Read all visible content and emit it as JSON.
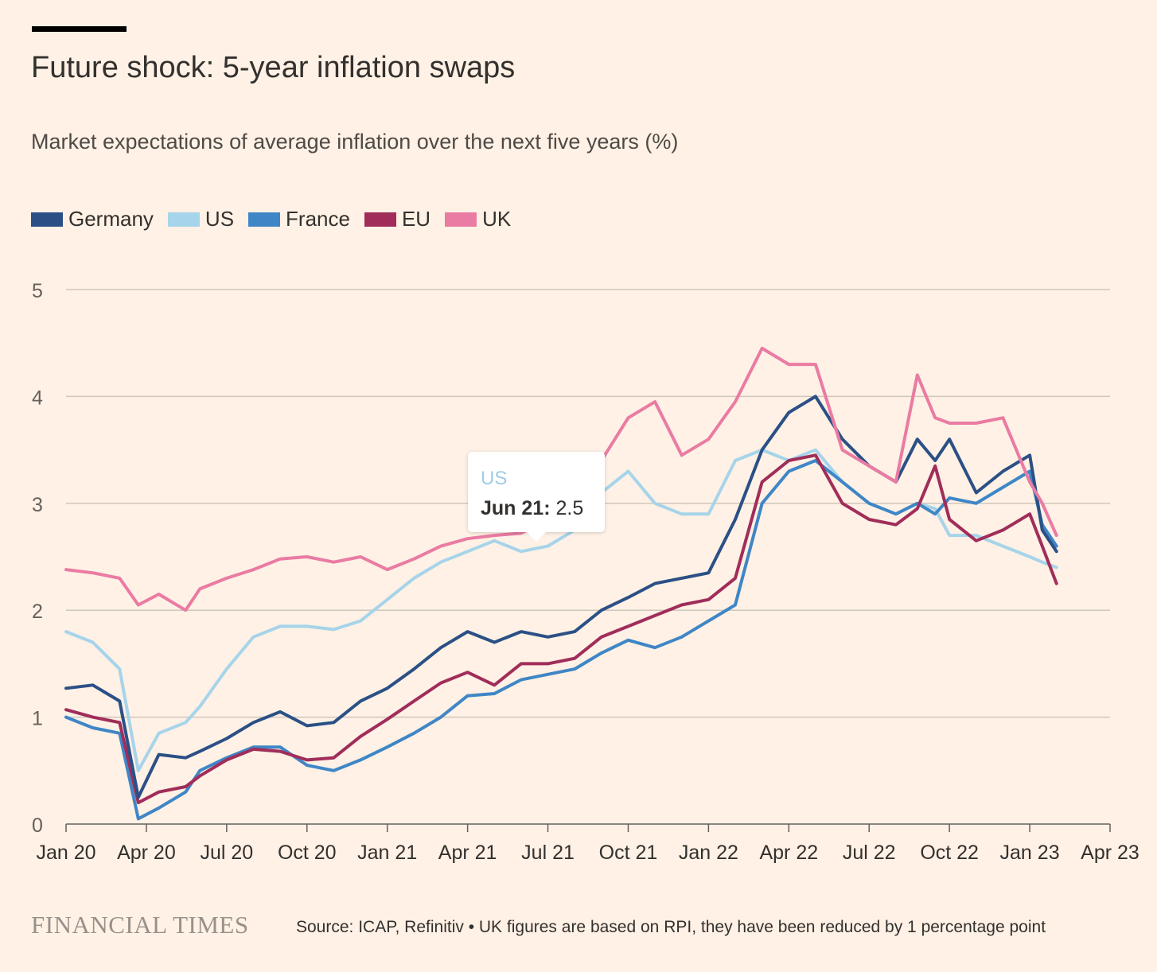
{
  "header": {
    "title": "Future shock: 5-year inflation swaps",
    "subtitle": "Market expectations of average inflation over the next five years (%)"
  },
  "legend": [
    {
      "label": "Germany",
      "color": "#2b5086"
    },
    {
      "label": "US",
      "color": "#a6d4ea"
    },
    {
      "label": "France",
      "color": "#3f86c6"
    },
    {
      "label": "EU",
      "color": "#a02d5a"
    },
    {
      "label": "UK",
      "color": "#ea7ba3"
    }
  ],
  "tooltip": {
    "series": "US",
    "date_label": "Jun 21:",
    "value": "2.5"
  },
  "footer": {
    "brand": "FINANCIAL TIMES",
    "source": "Source: ICAP, Refinitiv • UK figures are based on RPI, they have been reduced by 1 percentage point"
  },
  "chart_data": {
    "type": "line",
    "title": "Future shock: 5-year inflation swaps",
    "subtitle": "Market expectations of average inflation over the next five years (%)",
    "ylabel": "",
    "xlabel": "",
    "ylim": [
      0,
      5
    ],
    "yticks": [
      0,
      1,
      2,
      3,
      4,
      5
    ],
    "xticks": [
      "Jan 20",
      "Apr 20",
      "Jul 20",
      "Oct 20",
      "Jan 21",
      "Apr 21",
      "Jul 21",
      "Oct 21",
      "Jan 22",
      "Apr 22",
      "Jul 22",
      "Oct 22",
      "Jan 23",
      "Apr 23"
    ],
    "grid": "horizontal",
    "legend_position": "top-left",
    "x": [
      "2020-01-01",
      "2020-02-01",
      "2020-03-01",
      "2020-03-22",
      "2020-04-15",
      "2020-05-15",
      "2020-06-01",
      "2020-07-01",
      "2020-08-01",
      "2020-09-01",
      "2020-10-01",
      "2020-11-01",
      "2020-12-01",
      "2021-01-01",
      "2021-02-01",
      "2021-03-01",
      "2021-04-01",
      "2021-05-01",
      "2021-06-01",
      "2021-07-01",
      "2021-08-01",
      "2021-09-01",
      "2021-10-01",
      "2021-11-01",
      "2021-12-01",
      "2022-01-01",
      "2022-02-01",
      "2022-03-01",
      "2022-04-01",
      "2022-05-01",
      "2022-06-01",
      "2022-07-01",
      "2022-08-01",
      "2022-08-25",
      "2022-09-15",
      "2022-10-01",
      "2022-11-01",
      "2022-12-01",
      "2023-01-01",
      "2023-01-15",
      "2023-02-01"
    ],
    "series": [
      {
        "name": "Germany",
        "color": "#2b5086",
        "values": [
          1.27,
          1.3,
          1.15,
          0.25,
          0.65,
          0.62,
          0.68,
          0.8,
          0.95,
          1.05,
          0.92,
          0.95,
          1.15,
          1.27,
          1.45,
          1.65,
          1.8,
          1.7,
          1.8,
          1.75,
          1.8,
          2.0,
          2.12,
          2.25,
          2.3,
          2.35,
          2.85,
          3.5,
          3.85,
          4.0,
          3.6,
          3.35,
          3.2,
          3.6,
          3.4,
          3.6,
          3.1,
          3.3,
          3.45,
          2.75,
          2.55
        ]
      },
      {
        "name": "US",
        "color": "#a6d4ea",
        "values": [
          1.8,
          1.7,
          1.45,
          0.5,
          0.85,
          0.95,
          1.1,
          1.45,
          1.75,
          1.85,
          1.85,
          1.82,
          1.9,
          2.1,
          2.3,
          2.45,
          2.55,
          2.65,
          2.55,
          2.6,
          2.75,
          3.1,
          3.3,
          3.0,
          2.9,
          2.9,
          3.4,
          3.5,
          3.4,
          3.5,
          3.2,
          3.0,
          2.9,
          3.0,
          2.95,
          2.7,
          2.7,
          2.6,
          2.5,
          2.45,
          2.4
        ]
      },
      {
        "name": "France",
        "color": "#3f86c6",
        "values": [
          1.0,
          0.9,
          0.85,
          0.05,
          0.15,
          0.3,
          0.5,
          0.62,
          0.72,
          0.72,
          0.55,
          0.5,
          0.6,
          0.72,
          0.85,
          1.0,
          1.2,
          1.22,
          1.35,
          1.4,
          1.45,
          1.6,
          1.72,
          1.65,
          1.75,
          1.9,
          2.05,
          3.0,
          3.3,
          3.4,
          3.2,
          3.0,
          2.9,
          3.0,
          2.9,
          3.05,
          3.0,
          3.15,
          3.3,
          2.8,
          2.6
        ]
      },
      {
        "name": "EU",
        "color": "#a02d5a",
        "values": [
          1.07,
          1.0,
          0.95,
          0.2,
          0.3,
          0.35,
          0.45,
          0.6,
          0.7,
          0.68,
          0.6,
          0.62,
          0.82,
          0.98,
          1.15,
          1.32,
          1.42,
          1.3,
          1.5,
          1.5,
          1.55,
          1.75,
          1.85,
          1.95,
          2.05,
          2.1,
          2.3,
          3.2,
          3.4,
          3.45,
          3.0,
          2.85,
          2.8,
          2.95,
          3.35,
          2.85,
          2.65,
          2.75,
          2.9,
          2.6,
          2.25
        ]
      },
      {
        "name": "UK",
        "color": "#ea7ba3",
        "values": [
          2.38,
          2.35,
          2.3,
          2.05,
          2.15,
          2.0,
          2.2,
          2.3,
          2.38,
          2.48,
          2.5,
          2.45,
          2.5,
          2.38,
          2.48,
          2.6,
          2.67,
          2.7,
          2.72,
          2.85,
          3.0,
          3.4,
          3.8,
          3.95,
          3.45,
          3.6,
          3.95,
          4.45,
          4.3,
          4.3,
          3.5,
          3.35,
          3.2,
          4.2,
          3.8,
          3.75,
          3.75,
          3.8,
          3.2,
          3.0,
          2.7
        ]
      }
    ],
    "tooltip": {
      "series": "US",
      "date": "Jun 21",
      "value": 2.5
    }
  }
}
